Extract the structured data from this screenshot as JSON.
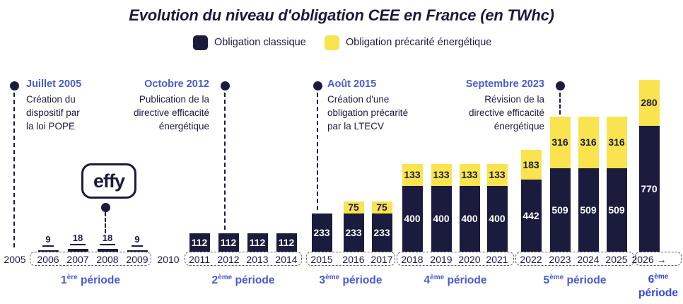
{
  "title": "Evolution du niveau d'obligation CEE en France (en TWhc)",
  "legend": {
    "classique": {
      "label": "Obligation classique",
      "color": "#1b1b3e"
    },
    "precarite": {
      "label": "Obligation précarité énergétique",
      "color": "#f9e44f"
    }
  },
  "colors": {
    "navy": "#1b1b3e",
    "yellow": "#f9e44f",
    "blue": "#4a5bd0",
    "blue_bold": "#3346da",
    "white": "#ffffff"
  },
  "logo_text": "effy",
  "milestones": [
    {
      "date": "Juillet 2005",
      "lines": [
        "Création du",
        "dispositif par",
        "la loi POPE"
      ]
    },
    {
      "date": "Octobre 2012",
      "lines": [
        "Publication de la",
        "directive efficacité",
        "énergétique"
      ]
    },
    {
      "date": "Août 2015",
      "lines": [
        "Création d'une",
        "obligation précarité",
        "par la LTECV"
      ]
    },
    {
      "date": "Septembre 2023",
      "lines": [
        "Révision de la",
        "directive efficacité",
        "énergétique"
      ]
    }
  ],
  "chart_data": {
    "type": "bar",
    "stacked": true,
    "unit": "TWhc",
    "title": "Evolution du niveau d'obligation CEE en France (en TWhc)",
    "series_names": [
      "Obligation classique",
      "Obligation précarité énergétique"
    ],
    "bars": [
      {
        "year": "2006",
        "classique": 9,
        "precarite": null
      },
      {
        "year": "2007",
        "classique": 18,
        "precarite": null
      },
      {
        "year": "2008",
        "classique": 18,
        "precarite": null
      },
      {
        "year": "2009",
        "classique": 9,
        "precarite": null
      },
      {
        "year": "2011",
        "classique": 112,
        "precarite": null
      },
      {
        "year": "2012",
        "classique": 112,
        "precarite": null
      },
      {
        "year": "2013",
        "classique": 112,
        "precarite": null
      },
      {
        "year": "2014",
        "classique": 112,
        "precarite": null
      },
      {
        "year": "2015",
        "classique": 233,
        "precarite": null
      },
      {
        "year": "2016",
        "classique": 233,
        "precarite": 75
      },
      {
        "year": "2017",
        "classique": 233,
        "precarite": 75
      },
      {
        "year": "2018",
        "classique": 400,
        "precarite": 133
      },
      {
        "year": "2019",
        "classique": 400,
        "precarite": 133
      },
      {
        "year": "2020",
        "classique": 400,
        "precarite": 133
      },
      {
        "year": "2021",
        "classique": 400,
        "precarite": 133
      },
      {
        "year": "2022",
        "classique": 442,
        "precarite": 183
      },
      {
        "year": "2023",
        "classique": 509,
        "precarite": 316
      },
      {
        "year": "2024",
        "classique": 509,
        "precarite": 316
      },
      {
        "year": "2025",
        "classique": 509,
        "precarite": 316
      },
      {
        "year": "2026",
        "classique": 770,
        "precarite": 280
      }
    ],
    "axis": {
      "standalone_years": [
        "2005",
        "2010"
      ],
      "grouped_years": [
        [
          "2006",
          "2007",
          "2008",
          "2009"
        ],
        [
          "2011",
          "2012",
          "2013",
          "2014"
        ],
        [
          "2015",
          "2016",
          "2017"
        ],
        [
          "2018",
          "2019",
          "2020",
          "2021"
        ],
        [
          "2022",
          "2023",
          "2024",
          "2025"
        ],
        [
          "2026 →"
        ]
      ]
    }
  },
  "periods": [
    {
      "num": "1",
      "sup": "ère",
      "word": "période"
    },
    {
      "num": "2",
      "sup": "ème",
      "word": "période"
    },
    {
      "num": "3",
      "sup": "ème",
      "word": "période"
    },
    {
      "num": "4",
      "sup": "ème",
      "word": "période"
    },
    {
      "num": "5",
      "sup": "ème",
      "word": "période"
    },
    {
      "num": "6",
      "sup": "ème",
      "word": "période"
    }
  ]
}
